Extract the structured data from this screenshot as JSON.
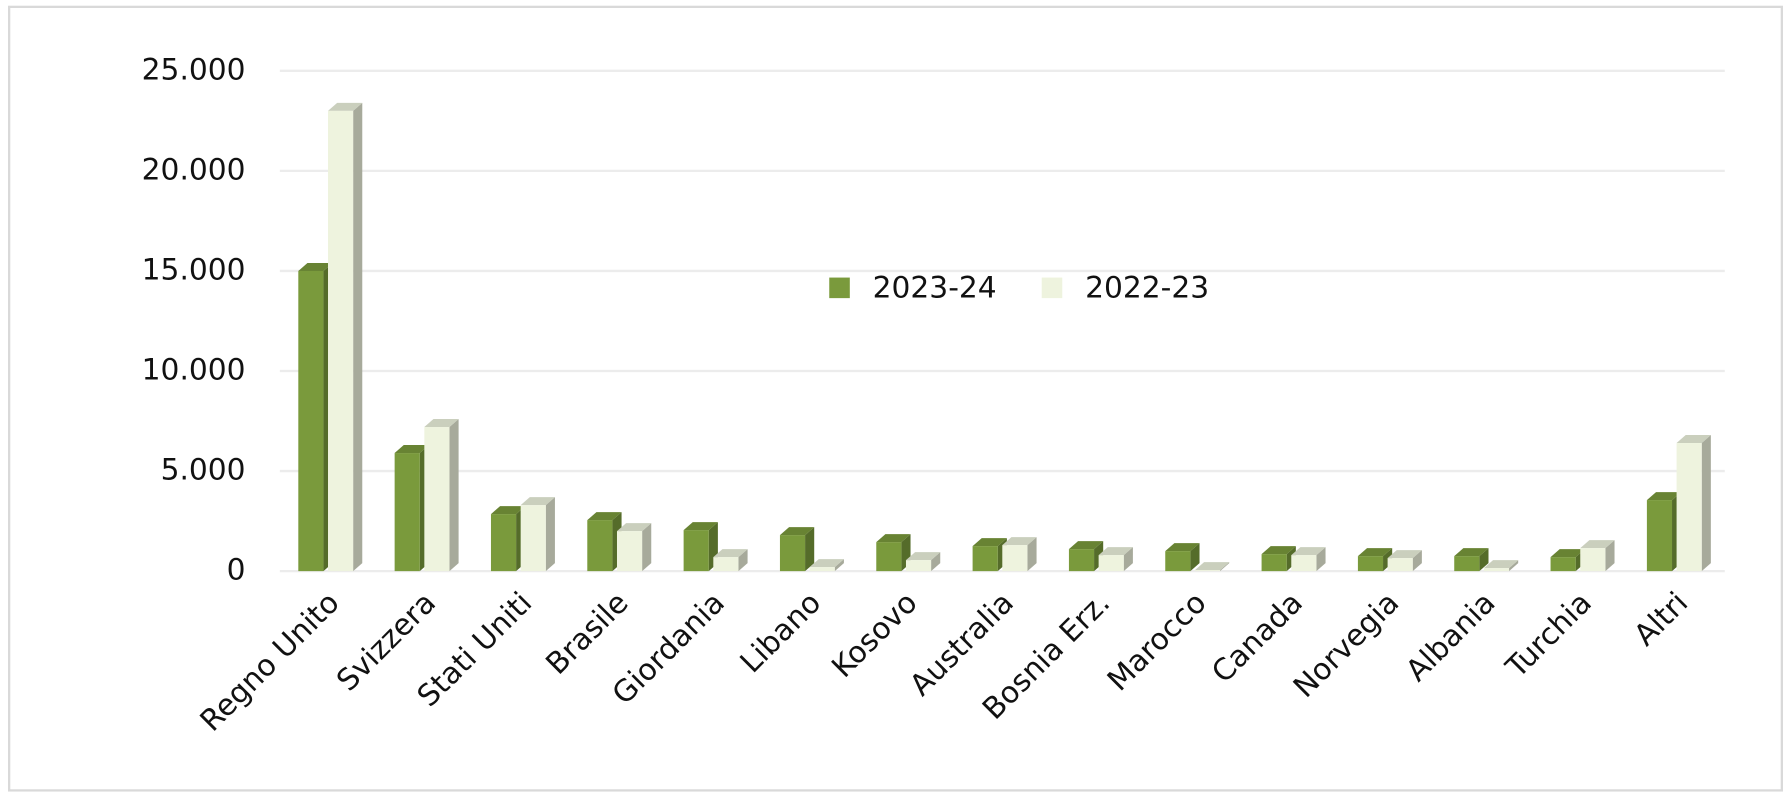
{
  "chart_data": {
    "type": "bar",
    "categories": [
      "Regno Unito",
      "Svizzera",
      "Stati Uniti",
      "Brasile",
      "Giordania",
      "Libano",
      "Kosovo",
      "Australia",
      "Bosnia Erz.",
      "Marocco",
      "Canada",
      "Norvegia",
      "Albania",
      "Turchia",
      "Altri"
    ],
    "series": [
      {
        "name": "2023-24",
        "color": "#7a9a3c",
        "values": [
          15000,
          5900,
          2850,
          2550,
          2050,
          1800,
          1450,
          1250,
          1100,
          1000,
          850,
          750,
          750,
          700,
          3550
        ]
      },
      {
        "name": "2022-23",
        "color": "#eef3de",
        "values": [
          23000,
          7200,
          3300,
          2000,
          700,
          200,
          550,
          1300,
          800,
          50,
          800,
          650,
          150,
          1150,
          6400
        ]
      }
    ],
    "ylim": [
      0,
      25000
    ],
    "yticks": [
      0,
      {
        "value": 5000,
        "label": "5.000"
      },
      {
        "value": 10000,
        "label": "10.000"
      },
      {
        "value": 15000,
        "label": "15.000"
      },
      {
        "value": 20000,
        "label": "20.000"
      },
      {
        "value": 25000,
        "label": "25.000"
      }
    ],
    "grid": true,
    "legend": "center"
  }
}
